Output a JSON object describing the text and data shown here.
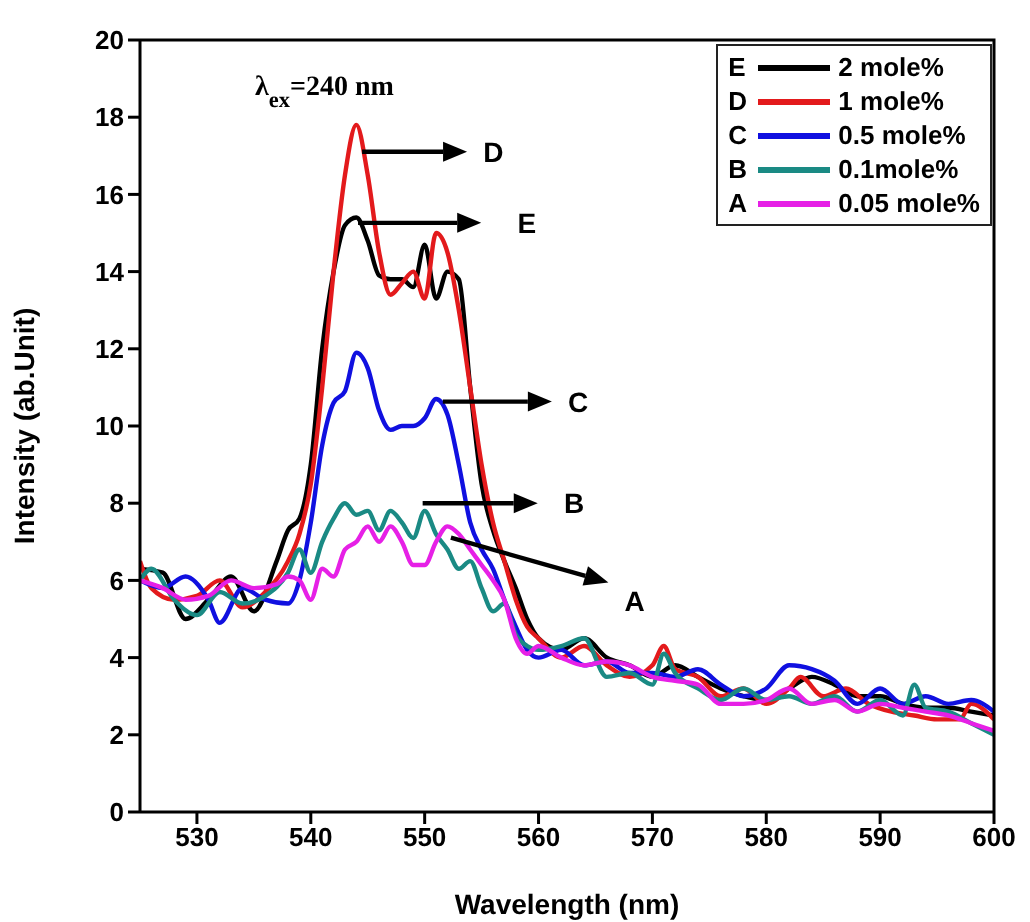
{
  "chart_data": {
    "type": "line",
    "xlabel": "Wavelength (nm)",
    "ylabel": "Intensity (ab.Unit)",
    "xlim": [
      525,
      600
    ],
    "xticks": [
      530,
      540,
      550,
      560,
      570,
      580,
      590,
      600
    ],
    "ylim": [
      0,
      20
    ],
    "yticks": [
      0,
      2,
      4,
      6,
      8,
      10,
      12,
      14,
      16,
      18,
      20
    ],
    "grid": false,
    "legend": "top right",
    "marker": "none",
    "line_style": "solid",
    "annotations": [
      "λ$_{ex}$=240 nm",
      "D",
      "E",
      "C",
      "B",
      "A",
      "E",
      "D",
      "C",
      "B",
      "A"
    ],
    "series": [
      {
        "name": "2 mole%",
        "color": "#000000",
        "x": [
          525,
          527,
          529,
          531,
          533,
          535,
          537,
          538,
          539,
          540,
          541,
          542,
          543,
          544,
          545,
          546,
          547,
          548,
          549,
          550,
          551,
          552,
          553,
          554,
          555,
          556,
          557,
          558,
          559,
          560,
          562,
          564,
          566,
          568,
          570,
          572,
          574,
          576,
          578,
          580,
          582,
          584,
          586,
          588,
          590,
          592,
          594,
          596,
          598,
          600
        ],
        "values": [
          6.3,
          6.2,
          5.0,
          5.5,
          6.1,
          5.2,
          6.5,
          7.3,
          7.6,
          9,
          12,
          14,
          15.2,
          15.4,
          14.8,
          13.9,
          13.8,
          13.8,
          13.6,
          14.7,
          13.3,
          14,
          13.8,
          11,
          8.5,
          7.3,
          6.5,
          5.8,
          5.0,
          4.5,
          4.2,
          4.5,
          4.0,
          3.8,
          3.5,
          3.8,
          3.5,
          3.2,
          3.0,
          2.9,
          3.2,
          3.5,
          3.3,
          3.0,
          3.0,
          2.8,
          2.7,
          2.7,
          2.6,
          2.5
        ]
      },
      {
        "name": "1 mole%",
        "color": "#e31a1c",
        "x": [
          525,
          526,
          528,
          530,
          532,
          534,
          536,
          538,
          539,
          540,
          541,
          542,
          543,
          544,
          545,
          546,
          547,
          548,
          549,
          550,
          551,
          552,
          553,
          554,
          555,
          556,
          557,
          558,
          559,
          560,
          562,
          564,
          566,
          568,
          570,
          571,
          572,
          574,
          576,
          578,
          580,
          582,
          583,
          585,
          587,
          589,
          591,
          593,
          595,
          597,
          598,
          600
        ],
        "values": [
          6.5,
          5.8,
          5.5,
          5.6,
          6.0,
          5.3,
          5.7,
          6.5,
          7.2,
          8.5,
          11,
          14,
          16.5,
          17.8,
          16.5,
          14.5,
          13.4,
          13.7,
          14,
          13.3,
          15,
          14.5,
          13,
          11,
          9,
          7.5,
          6.5,
          5.5,
          4.8,
          4.5,
          4.0,
          4.3,
          3.8,
          3.5,
          3.8,
          4.3,
          3.7,
          3.5,
          3.0,
          3.2,
          2.8,
          3.2,
          3.5,
          3.0,
          3.2,
          2.8,
          2.6,
          2.5,
          2.4,
          2.4,
          2.8,
          2.4
        ]
      },
      {
        "name": "0.5 mole%",
        "color": "#1010e0",
        "x": [
          525,
          527,
          529,
          531,
          532,
          534,
          536,
          538,
          539,
          540,
          541,
          542,
          543,
          544,
          545,
          546,
          547,
          548,
          549,
          550,
          551,
          552,
          553,
          554,
          555,
          556,
          557,
          558,
          559,
          560,
          562,
          564,
          566,
          568,
          570,
          572,
          574,
          576,
          578,
          580,
          582,
          584,
          586,
          588,
          590,
          592,
          594,
          596,
          598,
          600
        ],
        "values": [
          6.0,
          5.8,
          6.1,
          5.5,
          4.9,
          5.8,
          5.5,
          5.4,
          6,
          7.5,
          9.5,
          10.6,
          10.9,
          11.9,
          11.5,
          10.4,
          9.9,
          10.0,
          10.0,
          10.2,
          10.7,
          10.3,
          9,
          7.5,
          6.8,
          6.3,
          5.5,
          4.8,
          4.2,
          4.0,
          4.2,
          3.8,
          3.9,
          3.6,
          3.6,
          3.5,
          3.7,
          3.3,
          3.0,
          3.2,
          3.8,
          3.7,
          3.4,
          2.8,
          3.2,
          2.8,
          3.0,
          2.8,
          2.9,
          2.6
        ]
      },
      {
        "name": "0.1mole%",
        "color": "#1a8a84",
        "x": [
          525,
          526,
          528,
          530,
          532,
          534,
          536,
          538,
          539,
          540,
          541,
          542,
          543,
          544,
          545,
          546,
          547,
          548,
          549,
          550,
          551,
          552,
          553,
          554,
          555,
          556,
          557,
          558,
          559,
          560,
          562,
          564,
          566,
          568,
          570,
          571,
          572,
          574,
          576,
          578,
          580,
          582,
          584,
          586,
          588,
          590,
          592,
          593,
          594,
          596,
          598,
          600
        ],
        "values": [
          6.0,
          6.3,
          5.5,
          5.1,
          5.7,
          5.4,
          5.6,
          6.2,
          6.8,
          6.2,
          7,
          7.6,
          8.0,
          7.7,
          7.8,
          7.3,
          7.8,
          7.5,
          7.1,
          7.8,
          7.2,
          6.8,
          6.3,
          6.5,
          5.8,
          5.2,
          5.4,
          4.6,
          4.3,
          4.2,
          4.3,
          4.5,
          3.5,
          3.6,
          3.3,
          4.1,
          3.6,
          3.2,
          2.9,
          3.2,
          2.9,
          3.0,
          2.8,
          3.0,
          2.6,
          2.9,
          2.5,
          3.3,
          2.7,
          2.6,
          2.3,
          2.0
        ]
      },
      {
        "name": "0.05 mole%",
        "color": "#e620e6",
        "x": [
          525,
          527,
          529,
          531,
          533,
          535,
          537,
          538,
          539,
          540,
          541,
          542,
          543,
          544,
          545,
          546,
          547,
          548,
          549,
          550,
          551,
          552,
          553,
          554,
          555,
          556,
          557,
          558,
          559,
          560,
          562,
          564,
          566,
          568,
          570,
          572,
          574,
          576,
          578,
          580,
          582,
          584,
          586,
          588,
          590,
          592,
          594,
          596,
          598,
          600
        ],
        "values": [
          6.0,
          5.8,
          5.5,
          5.6,
          6.0,
          5.8,
          5.9,
          6.1,
          6.0,
          5.5,
          6.3,
          6.1,
          6.8,
          7.0,
          7.4,
          7.0,
          7.4,
          7.0,
          6.4,
          6.4,
          7.0,
          7.4,
          7.2,
          6.8,
          6.4,
          6.0,
          5.5,
          4.5,
          4.1,
          4.3,
          4.0,
          3.8,
          3.9,
          3.8,
          3.5,
          3.4,
          3.3,
          2.8,
          2.8,
          2.9,
          3.2,
          2.8,
          2.9,
          2.6,
          2.8,
          2.7,
          2.6,
          2.5,
          2.3,
          2.1
        ]
      }
    ]
  }
}
